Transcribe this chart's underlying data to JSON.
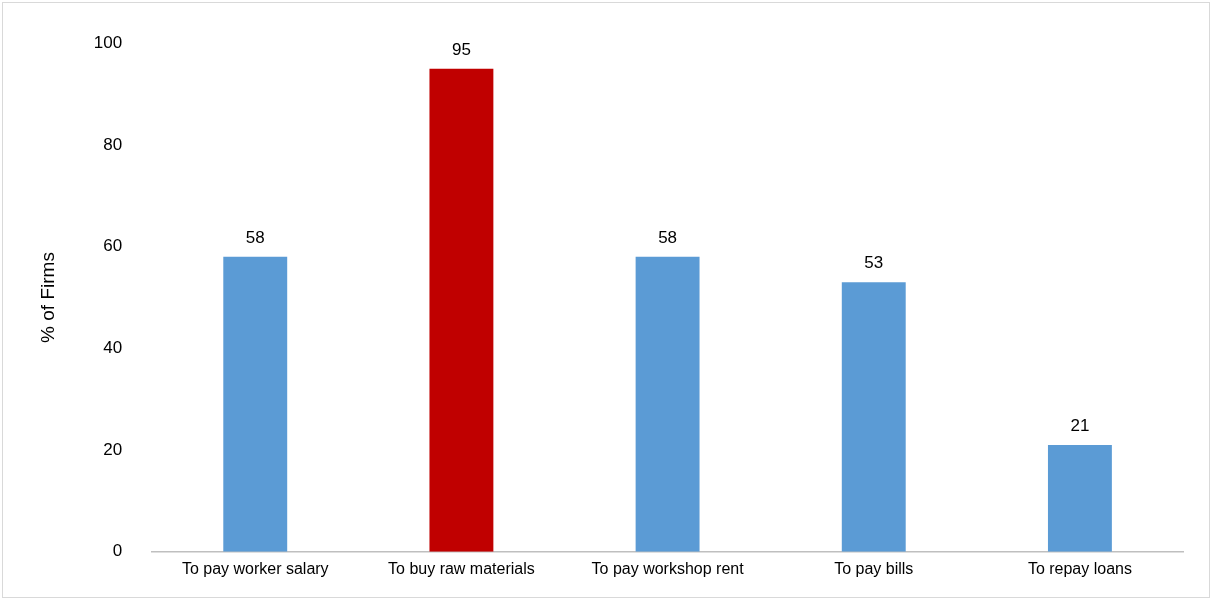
{
  "chart_data": {
    "type": "bar",
    "ylabel": "% of Firms",
    "categories": [
      "To pay worker salary",
      "To buy raw materials",
      "To pay workshop rent",
      "To pay bills",
      "To repay loans"
    ],
    "values": [
      58,
      95,
      58,
      53,
      21
    ],
    "colors": [
      "#5b9bd5",
      "#c00000",
      "#5b9bd5",
      "#5b9bd5",
      "#5b9bd5"
    ],
    "ylim": [
      0,
      100
    ],
    "yticks": [
      0,
      20,
      40,
      60,
      80,
      100
    ],
    "grid": false,
    "legend": false,
    "data_labels": true
  }
}
